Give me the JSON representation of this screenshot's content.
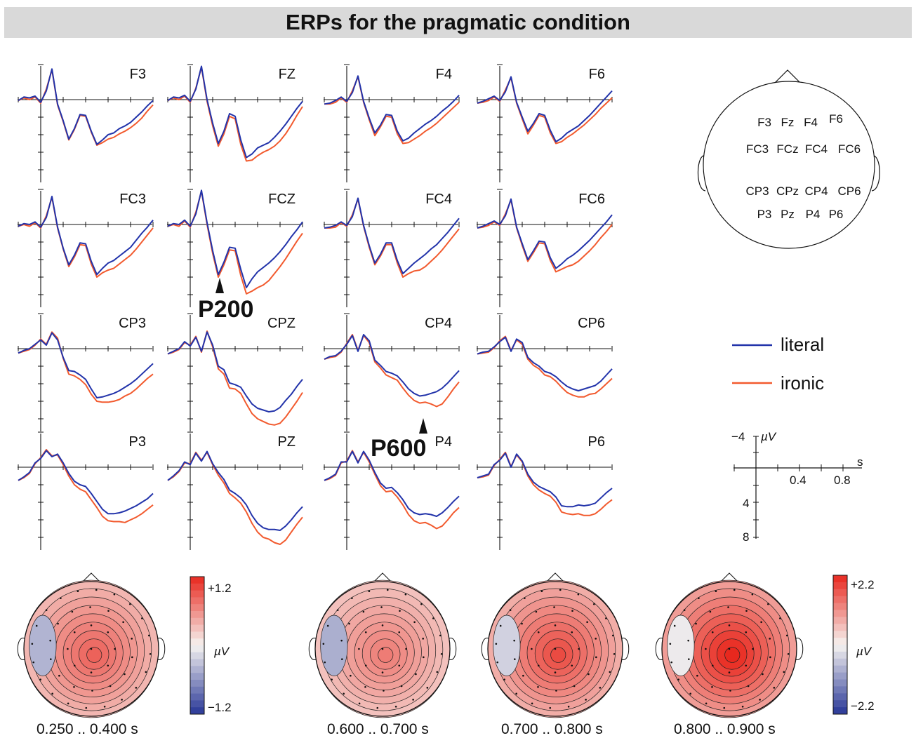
{
  "title": "ERPs for the pragmatic condition",
  "colors": {
    "literal": "#2233aa",
    "ironic": "#f25a2e",
    "positive": "#e83a2a",
    "negative": "#2b3a9a",
    "title_bg": "#d9d9d9"
  },
  "chart_data": [
    {
      "type": "line",
      "title": "ERPs for the pragmatic condition",
      "x_unit": "s",
      "y_unit": "µV",
      "y_axis": "negative up",
      "xlim": [
        -0.2,
        1.0
      ],
      "ylim": [
        -4,
        8
      ],
      "x_ticks": [
        "0.4",
        "0.8"
      ],
      "y_ticks": [
        "−4",
        "4",
        "8"
      ],
      "legend": [
        "literal",
        "ironic"
      ],
      "legend_position": "right",
      "x": [
        -0.2,
        -0.15,
        -0.1,
        -0.05,
        0,
        0.05,
        0.1,
        0.15,
        0.2,
        0.25,
        0.3,
        0.35,
        0.4,
        0.45,
        0.5,
        0.55,
        0.6,
        0.65,
        0.7,
        0.75,
        0.8,
        0.85,
        0.9,
        0.95,
        1.0
      ],
      "channels": [
        {
          "name": "F3",
          "literal": [
            0.1,
            -0.3,
            -0.2,
            -0.4,
            0.3,
            -1.0,
            -3.5,
            0.5,
            2.4,
            4.5,
            3.3,
            1.7,
            1.8,
            3.6,
            5.1,
            4.6,
            4.0,
            3.8,
            3.3,
            3.0,
            2.6,
            2.0,
            1.4,
            0.7,
            0.1
          ],
          "ironic": [
            0.1,
            -0.2,
            0.0,
            -0.3,
            0.4,
            -1.2,
            -3.4,
            0.6,
            2.5,
            4.6,
            3.4,
            1.8,
            1.9,
            3.7,
            5.2,
            4.9,
            4.5,
            4.3,
            3.9,
            3.6,
            3.2,
            2.7,
            2.1,
            1.3,
            0.6
          ]
        },
        {
          "name": "FZ",
          "literal": [
            0.1,
            -0.3,
            -0.2,
            -0.5,
            0.2,
            -1.2,
            -3.8,
            0.0,
            2.7,
            5.0,
            3.6,
            1.6,
            1.9,
            4.6,
            6.6,
            6.2,
            5.5,
            5.2,
            4.9,
            4.3,
            3.6,
            2.8,
            1.9,
            1.0,
            0.2
          ],
          "ironic": [
            0.1,
            -0.2,
            0.0,
            -0.4,
            0.3,
            -1.3,
            -3.7,
            0.2,
            3.0,
            5.3,
            3.9,
            1.9,
            2.2,
            5.1,
            7.0,
            6.9,
            6.4,
            6.0,
            5.7,
            5.3,
            4.7,
            3.9,
            2.9,
            1.8,
            0.8
          ]
        },
        {
          "name": "F4",
          "literal": [
            0.5,
            0.4,
            0.1,
            -0.3,
            0.2,
            -0.8,
            -2.7,
            0.2,
            2.1,
            3.8,
            2.9,
            1.7,
            1.8,
            3.6,
            4.7,
            4.4,
            3.8,
            3.3,
            2.8,
            2.4,
            1.9,
            1.3,
            0.8,
            0.2,
            -0.5
          ],
          "ironic": [
            0.5,
            0.5,
            0.3,
            -0.2,
            0.3,
            -1.0,
            -2.6,
            0.3,
            2.3,
            4.1,
            3.1,
            1.9,
            2.0,
            3.9,
            5.0,
            4.9,
            4.5,
            4.1,
            3.6,
            3.2,
            2.7,
            2.1,
            1.5,
            0.9,
            0.3
          ]
        },
        {
          "name": "F6",
          "literal": [
            0.4,
            0.2,
            -0.1,
            -0.4,
            0.1,
            -0.9,
            -2.6,
            0.3,
            2.0,
            3.6,
            2.7,
            1.6,
            1.8,
            3.5,
            4.8,
            4.4,
            3.8,
            3.4,
            3.0,
            2.4,
            1.8,
            1.1,
            0.4,
            -0.3,
            -1.0
          ],
          "ironic": [
            0.4,
            0.3,
            0.1,
            -0.3,
            0.2,
            -1.1,
            -2.5,
            0.4,
            2.2,
            3.9,
            2.9,
            1.8,
            2.0,
            3.8,
            5.0,
            4.8,
            4.3,
            3.9,
            3.4,
            2.9,
            2.3,
            1.7,
            1.0,
            0.4,
            -0.2
          ]
        },
        {
          "name": "FC3",
          "literal": [
            0.2,
            -0.1,
            0.0,
            -0.3,
            0.3,
            -0.8,
            -3.2,
            0.3,
            2.7,
            4.6,
            3.5,
            2.1,
            2.2,
            4.2,
            5.7,
            5.0,
            4.4,
            4.1,
            3.6,
            3.1,
            2.6,
            1.8,
            1.0,
            0.3,
            -0.5
          ],
          "ironic": [
            0.2,
            0.0,
            0.2,
            -0.2,
            0.4,
            -1.0,
            -3.1,
            0.4,
            2.8,
            4.8,
            3.7,
            2.3,
            2.4,
            4.5,
            6.0,
            5.5,
            5.2,
            5.0,
            4.5,
            4.0,
            3.5,
            2.8,
            2.0,
            1.2,
            0.4
          ]
        },
        {
          "name": "FCZ",
          "literal": [
            0.2,
            -0.1,
            0.0,
            -0.5,
            0.2,
            -1.2,
            -3.9,
            -0.2,
            3.0,
            5.7,
            4.3,
            2.6,
            2.7,
            5.1,
            7.2,
            6.2,
            5.4,
            4.9,
            4.4,
            3.8,
            3.1,
            2.3,
            1.4,
            0.6,
            -0.3
          ],
          "ironic": [
            0.2,
            0.0,
            0.2,
            -0.4,
            0.3,
            -1.4,
            -3.8,
            0.0,
            3.3,
            6.0,
            4.6,
            2.9,
            3.0,
            5.8,
            7.9,
            7.6,
            7.2,
            6.9,
            6.4,
            5.6,
            4.8,
            3.9,
            2.9,
            1.9,
            1.0
          ]
        },
        {
          "name": "FC4",
          "literal": [
            0.4,
            0.3,
            0.1,
            -0.3,
            0.1,
            -0.9,
            -3.0,
            0.1,
            2.4,
            4.4,
            3.4,
            2.1,
            2.1,
            4.1,
            5.6,
            5.0,
            4.4,
            3.9,
            3.4,
            2.8,
            2.3,
            1.6,
            0.9,
            0.1,
            -0.7
          ],
          "ironic": [
            0.4,
            0.4,
            0.3,
            -0.2,
            0.2,
            -1.1,
            -2.9,
            0.2,
            2.6,
            4.6,
            3.6,
            2.3,
            2.3,
            4.4,
            6.0,
            5.6,
            5.3,
            5.2,
            4.8,
            4.2,
            3.6,
            2.9,
            2.1,
            1.3,
            0.5
          ]
        },
        {
          "name": "FC6",
          "literal": [
            0.4,
            0.2,
            -0.1,
            -0.4,
            0.0,
            -1.0,
            -2.9,
            0.3,
            2.2,
            4.0,
            3.0,
            1.9,
            2.0,
            3.8,
            5.0,
            4.5,
            3.9,
            3.5,
            3.0,
            2.4,
            1.8,
            1.1,
            0.4,
            -0.3,
            -1.1
          ],
          "ironic": [
            0.4,
            0.3,
            0.1,
            -0.3,
            0.1,
            -1.2,
            -2.8,
            0.4,
            2.4,
            4.2,
            3.2,
            2.1,
            2.2,
            4.1,
            5.4,
            5.1,
            4.8,
            4.6,
            4.2,
            3.6,
            3.0,
            2.3,
            1.5,
            0.8,
            0.0
          ]
        },
        {
          "name": "CP3",
          "literal": [
            0.5,
            0.2,
            0.0,
            -0.5,
            -1.0,
            -0.4,
            -1.8,
            -1.0,
            1.0,
            2.5,
            2.6,
            3.0,
            3.5,
            4.6,
            5.6,
            5.5,
            5.3,
            5.1,
            4.8,
            4.4,
            4.0,
            3.5,
            2.9,
            2.3,
            1.7
          ],
          "ironic": [
            0.5,
            0.3,
            0.1,
            -0.4,
            -1.1,
            -0.5,
            -1.9,
            -1.2,
            1.1,
            2.9,
            3.1,
            3.5,
            4.1,
            5.2,
            6.0,
            6.1,
            6.1,
            6.0,
            5.8,
            5.4,
            5.1,
            4.6,
            4.0,
            3.4,
            2.9
          ]
        },
        {
          "name": "CPZ",
          "literal": [
            0.6,
            0.3,
            0.0,
            -0.8,
            -0.3,
            -1.3,
            0.3,
            -1.9,
            -0.4,
            2.0,
            2.4,
            3.9,
            4.1,
            4.4,
            5.4,
            6.3,
            6.8,
            7.0,
            7.2,
            7.1,
            6.7,
            5.9,
            5.2,
            4.3,
            3.5
          ],
          "ironic": [
            0.6,
            0.4,
            0.1,
            -0.7,
            -0.4,
            -1.4,
            0.4,
            -2.0,
            -0.2,
            2.3,
            2.9,
            4.5,
            4.6,
            5.1,
            6.3,
            7.4,
            8.0,
            8.3,
            8.6,
            8.7,
            8.5,
            7.8,
            6.9,
            6.0,
            5.0
          ]
        },
        {
          "name": "CP4",
          "literal": [
            1.2,
            0.9,
            0.8,
            0.3,
            -0.5,
            -1.5,
            0.3,
            -1.6,
            -0.9,
            1.3,
            1.9,
            2.6,
            2.8,
            3.1,
            3.8,
            4.6,
            5.1,
            5.4,
            5.3,
            5.1,
            4.9,
            4.5,
            3.9,
            3.2,
            2.5
          ],
          "ironic": [
            1.2,
            1.0,
            0.9,
            0.4,
            -0.6,
            -1.6,
            0.2,
            -1.5,
            -0.7,
            1.5,
            2.2,
            3.0,
            3.3,
            3.6,
            4.5,
            5.3,
            5.9,
            6.2,
            6.1,
            6.3,
            6.6,
            6.3,
            5.5,
            4.6,
            3.8
          ]
        },
        {
          "name": "CP6",
          "literal": [
            0.6,
            0.4,
            0.3,
            -0.2,
            -0.8,
            -1.3,
            0.3,
            -1.1,
            -0.7,
            1.0,
            1.6,
            2.0,
            2.6,
            2.8,
            3.2,
            3.8,
            4.3,
            4.6,
            4.8,
            4.6,
            4.4,
            4.2,
            3.7,
            3.0,
            2.3
          ],
          "ironic": [
            0.6,
            0.5,
            0.4,
            -0.1,
            -0.9,
            -1.4,
            0.2,
            -1.0,
            -0.5,
            1.2,
            1.9,
            2.3,
            3.0,
            3.2,
            3.7,
            4.4,
            5.0,
            5.3,
            5.5,
            5.5,
            5.2,
            5.1,
            4.6,
            4.0,
            3.4
          ]
        },
        {
          "name": "P3",
          "literal": [
            1.5,
            1.1,
            0.6,
            -0.5,
            -1.0,
            -1.9,
            -1.2,
            -1.5,
            -0.5,
            0.7,
            1.6,
            2.0,
            2.2,
            3.0,
            3.9,
            4.8,
            5.3,
            5.3,
            5.2,
            5.0,
            4.7,
            4.4,
            4.0,
            3.6,
            3.0
          ],
          "ironic": [
            1.5,
            1.2,
            0.7,
            -0.4,
            -1.1,
            -2.0,
            -1.3,
            -1.4,
            -0.3,
            1.0,
            2.0,
            2.5,
            2.8,
            3.7,
            4.6,
            5.6,
            6.1,
            6.2,
            6.2,
            6.3,
            6.0,
            5.7,
            5.3,
            4.8,
            4.3
          ]
        },
        {
          "name": "PZ",
          "literal": [
            1.5,
            1.0,
            0.4,
            -0.6,
            -0.3,
            -1.6,
            -0.7,
            -1.8,
            -0.4,
            0.6,
            1.4,
            2.6,
            3.0,
            3.5,
            4.3,
            5.5,
            6.4,
            6.9,
            7.1,
            7.1,
            7.2,
            6.7,
            6.0,
            5.2,
            4.5
          ],
          "ironic": [
            1.5,
            1.1,
            0.5,
            -0.5,
            -0.4,
            -1.7,
            -0.8,
            -1.7,
            -0.3,
            0.9,
            1.8,
            3.0,
            3.5,
            4.1,
            5.1,
            6.4,
            7.4,
            8.0,
            8.2,
            8.6,
            8.8,
            8.3,
            7.4,
            6.5,
            5.7
          ]
        },
        {
          "name": "P4",
          "literal": [
            1.5,
            1.2,
            0.8,
            -0.6,
            -0.6,
            -1.8,
            -0.5,
            -1.8,
            -0.8,
            0.6,
            1.8,
            2.4,
            2.3,
            2.9,
            3.7,
            4.7,
            5.2,
            5.4,
            5.3,
            5.4,
            5.6,
            5.2,
            4.6,
            3.9,
            3.3
          ],
          "ironic": [
            1.5,
            1.3,
            0.9,
            -0.5,
            -0.7,
            -1.9,
            -0.6,
            -1.7,
            -0.6,
            0.8,
            2.1,
            2.8,
            2.7,
            3.4,
            4.3,
            5.4,
            6.1,
            6.4,
            6.3,
            6.6,
            7.0,
            6.7,
            6.0,
            5.2,
            4.6
          ]
        },
        {
          "name": "P6",
          "literal": [
            1.2,
            1.0,
            0.8,
            -0.3,
            -0.8,
            -1.6,
            0.0,
            -1.5,
            -0.7,
            0.8,
            1.7,
            2.2,
            2.5,
            2.8,
            3.4,
            4.4,
            4.5,
            4.5,
            4.3,
            4.4,
            4.3,
            4.1,
            3.5,
            2.9,
            2.4
          ],
          "ironic": [
            1.2,
            1.1,
            0.9,
            -0.2,
            -0.9,
            -1.7,
            -0.1,
            -1.4,
            -0.6,
            1.0,
            2.0,
            2.6,
            3.0,
            3.3,
            4.0,
            5.1,
            5.3,
            5.4,
            5.3,
            5.5,
            5.5,
            5.3,
            4.8,
            4.2,
            3.7
          ]
        }
      ]
    },
    {
      "type": "heatmap",
      "kind": "topographic maps",
      "unit": "µV",
      "maps": [
        {
          "time_window": "0.250 .. 0.400 s",
          "scale": "+1.2 / −1.2",
          "max_value": 0.8,
          "min_value": -0.4
        },
        {
          "time_window": "0.600 .. 0.700 s",
          "scale": "+2.2 / −2.2",
          "max_value": 1.2,
          "min_value": -0.8
        },
        {
          "time_window": "0.700 .. 0.800 s",
          "scale": "+2.2 / −2.2",
          "max_value": 1.7,
          "min_value": -0.4
        },
        {
          "time_window": "0.800 .. 0.900 s",
          "scale": "+2.2 / −2.2",
          "max_value": 2.1,
          "min_value": -0.1
        }
      ]
    }
  ],
  "annotations": {
    "p200": "P200",
    "p600": "P600"
  },
  "legend": {
    "literal": "literal",
    "ironic": "ironic"
  },
  "scale_axis": {
    "y_top": "−4",
    "y_unit": "µV",
    "x_unit": "s",
    "x_ticks": [
      "0.4",
      "0.8"
    ],
    "y_ticks": [
      "4",
      "8"
    ]
  },
  "head_labels": [
    [
      "F3",
      "Fz",
      "F4",
      "F6"
    ],
    [
      "FC3",
      "FCz",
      "FC4",
      "FC6"
    ],
    [
      "CP3",
      "CPz",
      "CP4",
      "CP6"
    ],
    [
      "P3",
      "Pz",
      "P4",
      "P6"
    ]
  ],
  "colorbars": [
    {
      "top": "+1.2",
      "mid": "µV",
      "bottom": "−1.2"
    },
    {
      "top": "+2.2",
      "mid": "µV",
      "bottom": "−2.2"
    }
  ],
  "time_windows": [
    "0.250 .. 0.400 s",
    "0.600 .. 0.700 s",
    "0.700 .. 0.800 s",
    "0.800 .. 0.900 s"
  ]
}
